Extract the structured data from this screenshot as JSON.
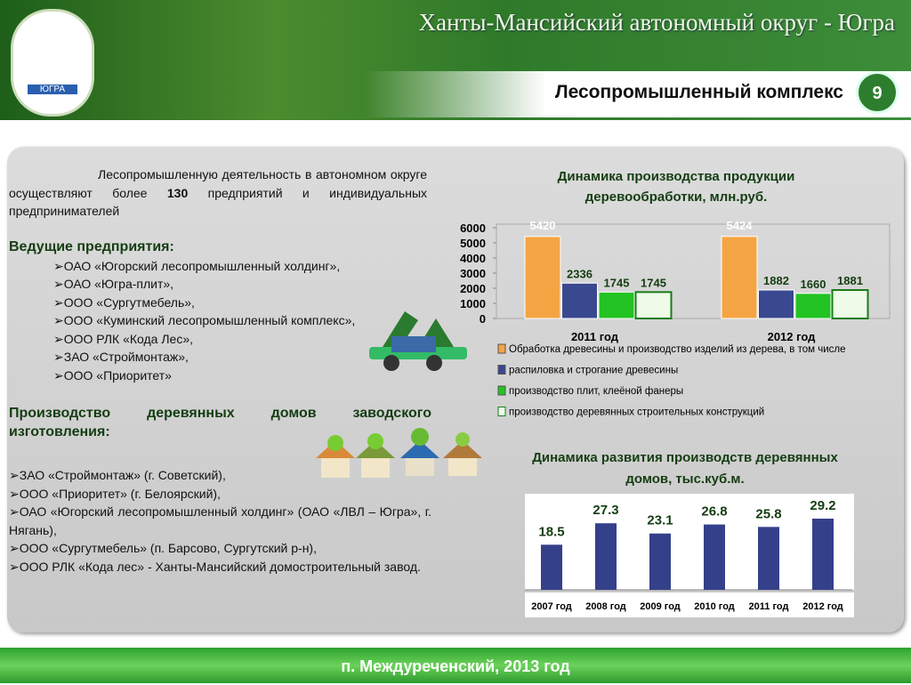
{
  "header": {
    "region": "Ханты-Мансийский автономный округ - Югра",
    "title": "Лесопромышленный комплекс",
    "page": 9,
    "logo_text": "ЮГРА"
  },
  "intro": {
    "before": "Лесопромышленную деятельность в автономном округе осуществляют более",
    "number": 130,
    "after": "предприятий и индивидуальных предпринимателей"
  },
  "leading": {
    "heading": "Ведущие предприятия:",
    "items": [
      "ОАО «Югорский лесопромышленный холдинг»,",
      "ОАО «Югра-плит»,",
      "ООО «Сургутмебель»,",
      "ООО «Куминский лесопромышленный комплекс»,",
      "ООО РЛК «Кода Лес»,",
      "ЗАО «Строймонтаж»,",
      "ООО «Приоритет»"
    ]
  },
  "houses": {
    "heading": "Производство деревянных домов заводского изготовления:",
    "items": [
      "ЗАО «Строймонтаж» (г. Советский),",
      "ООО «Приоритет» (г. Белоярский),",
      "ОАО «Югорский лесопромышленный холдинг» (ОАО «ЛВЛ – Югра», г. Нягань),",
      "ООО «Сургутмебель» (п. Барсово, Сургутский р-н),",
      "ООО РЛК «Кода лес» - Ханты-Мансийский домостроительный завод."
    ]
  },
  "footer": "п. Междуреченский, 2013 год",
  "chart_data": [
    {
      "type": "bar",
      "title": [
        "Динамика производства продукции",
        "деревообработки, млн.руб."
      ],
      "categories": [
        "2011 год",
        "2012 год"
      ],
      "series": [
        {
          "name": "Обработка древесины и производство изделий из дерева, в том числе",
          "color": "#f5a443",
          "values": [
            5420,
            5424
          ]
        },
        {
          "name": "распиловка и строгание древесины",
          "color": "#3a4890",
          "values": [
            2336,
            1882
          ]
        },
        {
          "name": "производство плит, клеёной фанеры",
          "color": "#22c322",
          "values": [
            1745,
            1660
          ]
        },
        {
          "name": "производство деревянных строительных конструкций",
          "color": "#eefbe8",
          "values": [
            1745,
            1881
          ]
        }
      ],
      "ylim": [
        0,
        6000
      ],
      "yticks": [
        0,
        1000,
        2000,
        3000,
        4000,
        5000,
        6000
      ],
      "legend": "bottom"
    },
    {
      "type": "bar",
      "title": [
        "Динамика развития производств деревянных",
        "домов, тыс.куб.м."
      ],
      "categories": [
        "2007 год",
        "2008 год",
        "2009 год",
        "2010 год",
        "2011 год",
        "2012 год"
      ],
      "values": [
        18.5,
        27.3,
        23.1,
        26.8,
        25.8,
        29.2
      ],
      "color": "#34408a"
    }
  ]
}
